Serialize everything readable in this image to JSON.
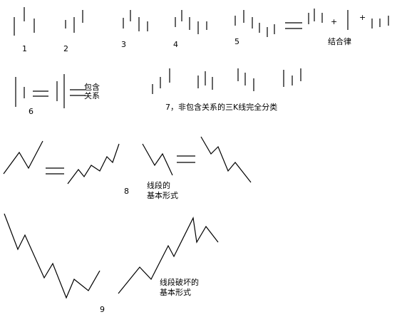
{
  "labels": {
    "n1": "1",
    "n2": "2",
    "n3": "3",
    "n4": "4",
    "n5": "5",
    "combination_law": "结合律",
    "plus_a": "+",
    "plus_b": "+",
    "baohan_line1": "包含",
    "baohan_line2": "关系",
    "n6": "6",
    "caption7": "7，非包含关系的三K线完全分类",
    "n8": "8",
    "caption8_line1": "线段的",
    "caption8_line2": "基本形式",
    "n9": "9",
    "caption9_line1": "线段破坏的",
    "caption9_line2": "基本形式"
  }
}
